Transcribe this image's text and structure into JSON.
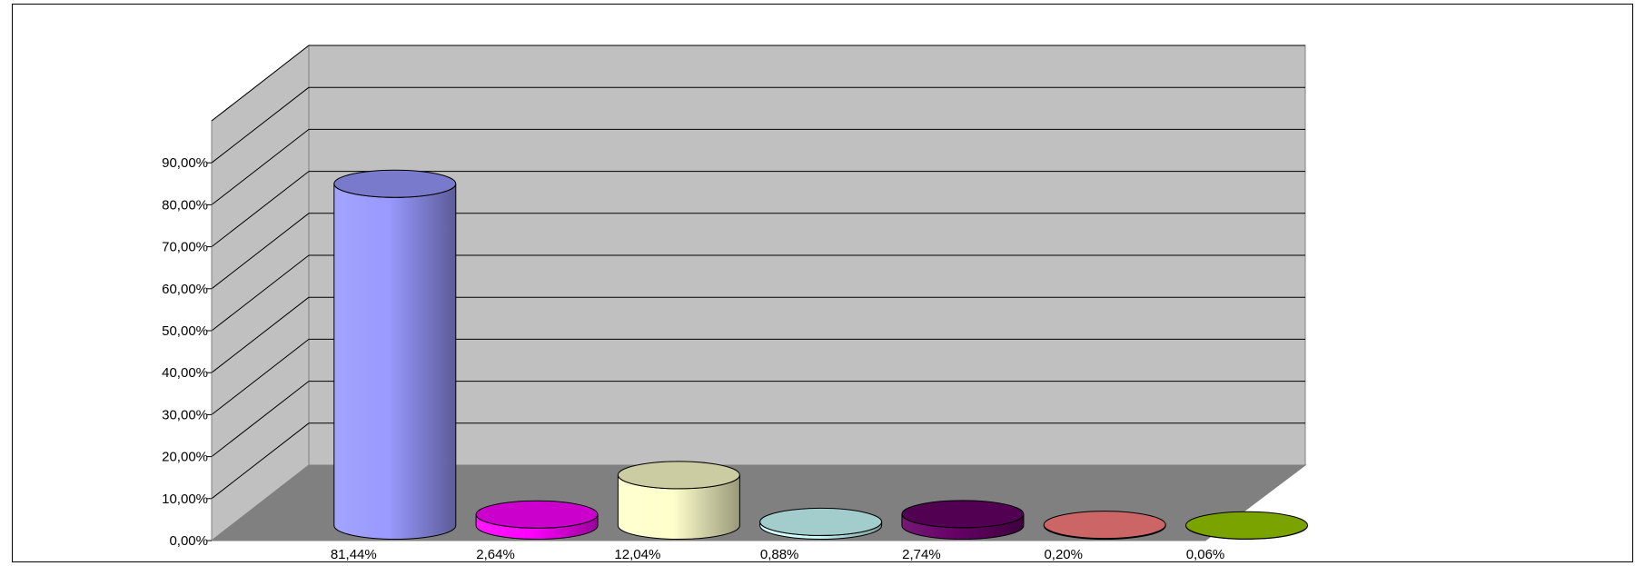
{
  "chart_data": {
    "type": "bar",
    "shape": "cylinder-3d",
    "categories": [
      "81,44%",
      "2,64%",
      "12,04%",
      "0,88%",
      "2,74%",
      "0,20%",
      "0,06%"
    ],
    "values": [
      81.44,
      2.64,
      12.04,
      0.88,
      2.74,
      0.2,
      0.06
    ],
    "ylim": [
      0,
      90
    ],
    "y_ticks": [
      "0,00%",
      "10,00%",
      "20,00%",
      "30,00%",
      "40,00%",
      "50,00%",
      "60,00%",
      "70,00%",
      "80,00%",
      "90,00%"
    ],
    "grid": true,
    "legend": "none",
    "colors": {
      "bars": [
        "#9999ff",
        "#ff00ff",
        "#ffffcc",
        "#ccffff",
        "#660066",
        "#ff8080",
        "#99cc00"
      ],
      "back_wall": "#c0c0c0",
      "side_wall": "#c0c0c0",
      "floor": "#808080",
      "gridline": "#000000"
    }
  }
}
